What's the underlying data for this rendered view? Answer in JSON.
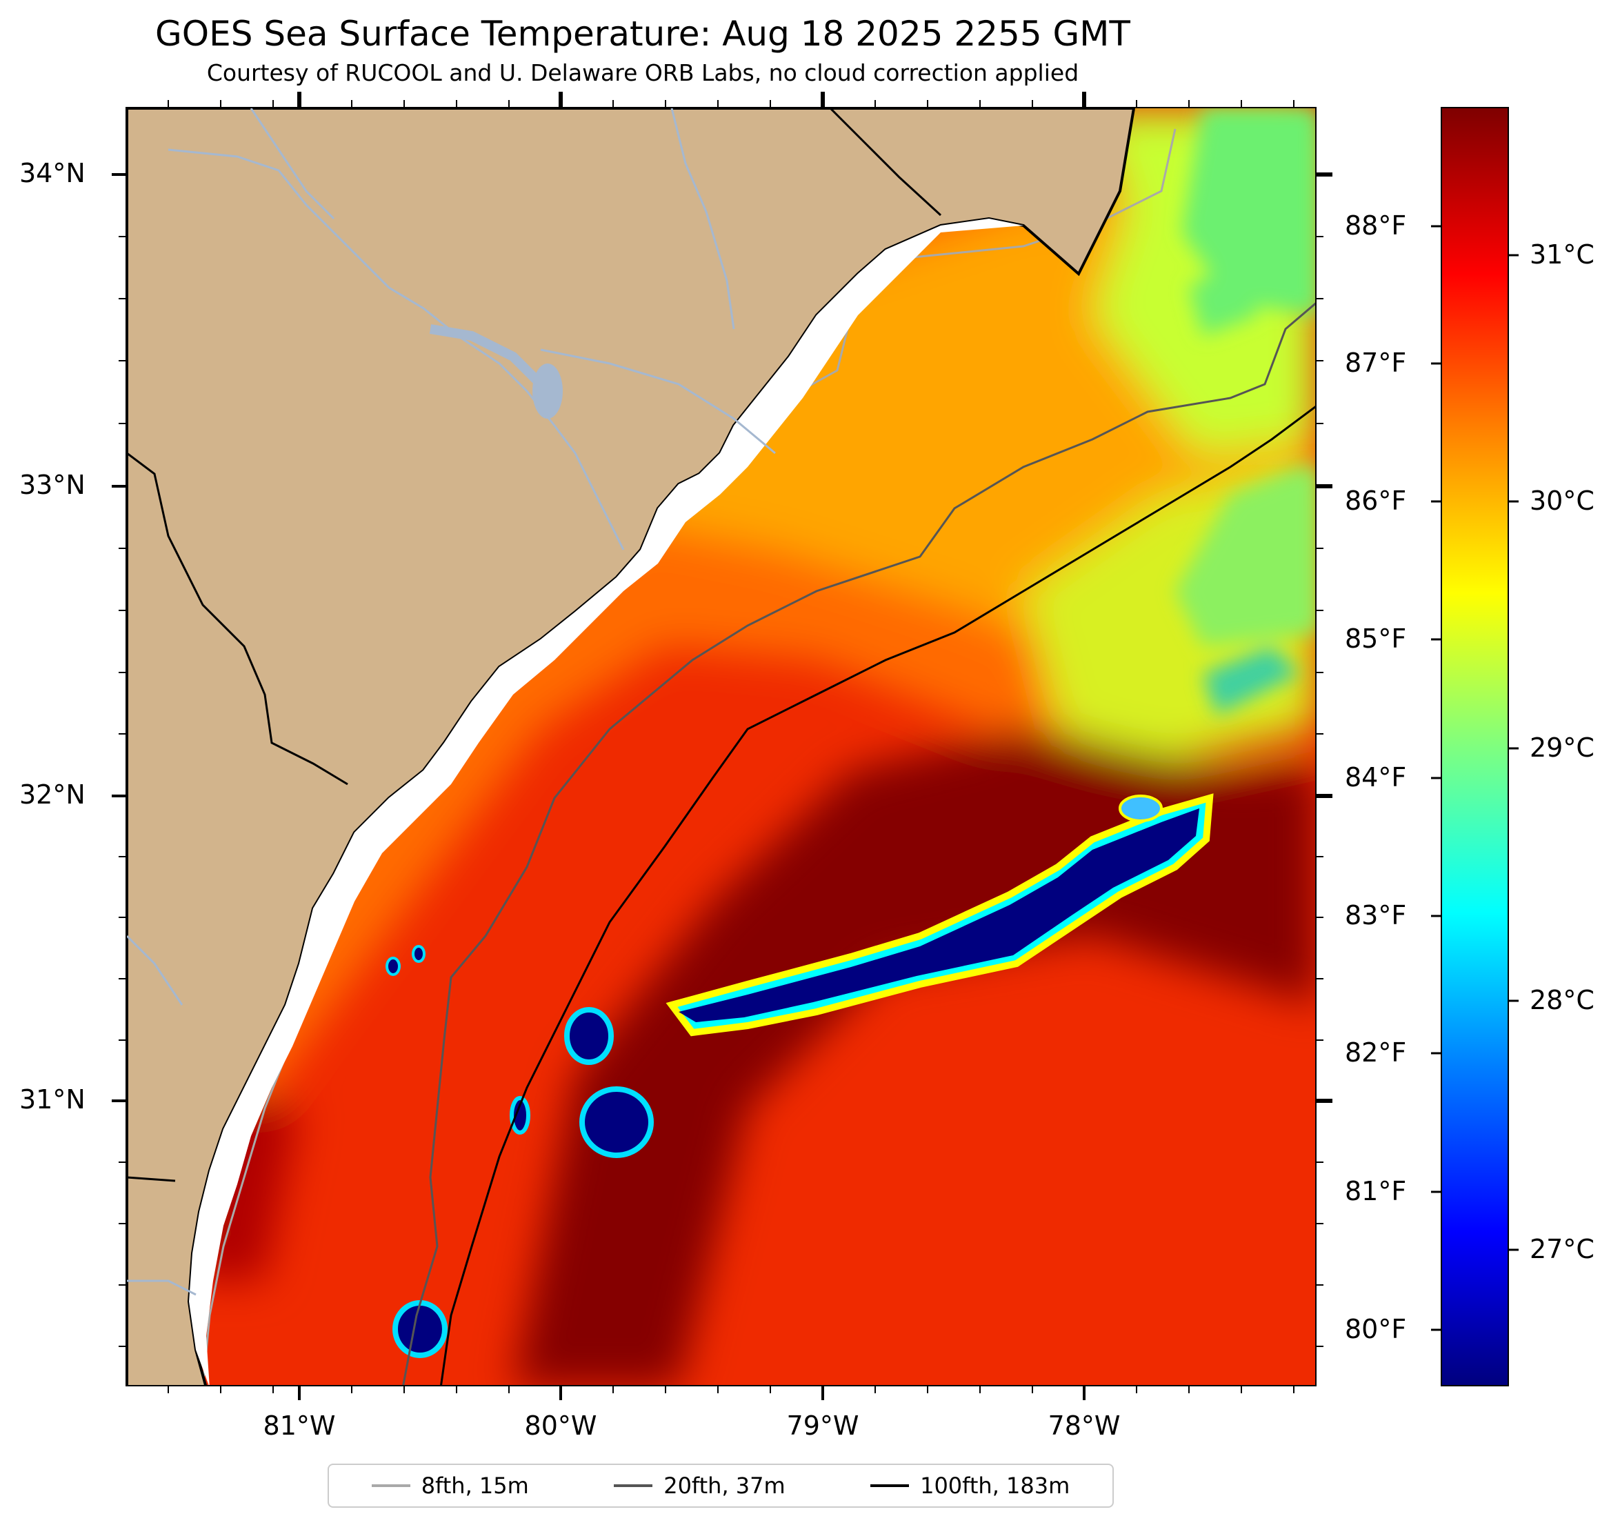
{
  "title": "GOES Sea Surface Temperature: Aug 18 2025 2255 GMT",
  "subtitle": "Courtesy of RUCOOL and U. Delaware ORB Labs, no cloud correction applied",
  "map": {
    "lat_labels": [
      "34°N",
      "33°N",
      "32°N",
      "31°N"
    ],
    "lon_labels": [
      "81°W",
      "80°W",
      "79°W",
      "78°W"
    ],
    "lat_range": [
      30.1,
      34.2
    ],
    "lon_range": [
      -81.67,
      -77.12
    ],
    "land_color": "#d2b48c",
    "river_color": "#a5b8d0"
  },
  "colorbar": {
    "colormap": "jet",
    "fahrenheit_labels": [
      "88°F",
      "87°F",
      "86°F",
      "85°F",
      "84°F",
      "83°F",
      "82°F",
      "81°F",
      "80°F"
    ],
    "celsius_labels": [
      "31°C",
      "30°C",
      "29°C",
      "28°C",
      "27°C"
    ],
    "range_c": [
      26.5,
      31.7
    ]
  },
  "legend": {
    "items": [
      {
        "label": "8fth, 15m",
        "color": "#a9a9a9"
      },
      {
        "label": "20fth, 37m",
        "color": "#555555"
      },
      {
        "label": "100fth, 183m",
        "color": "#000000"
      }
    ]
  }
}
